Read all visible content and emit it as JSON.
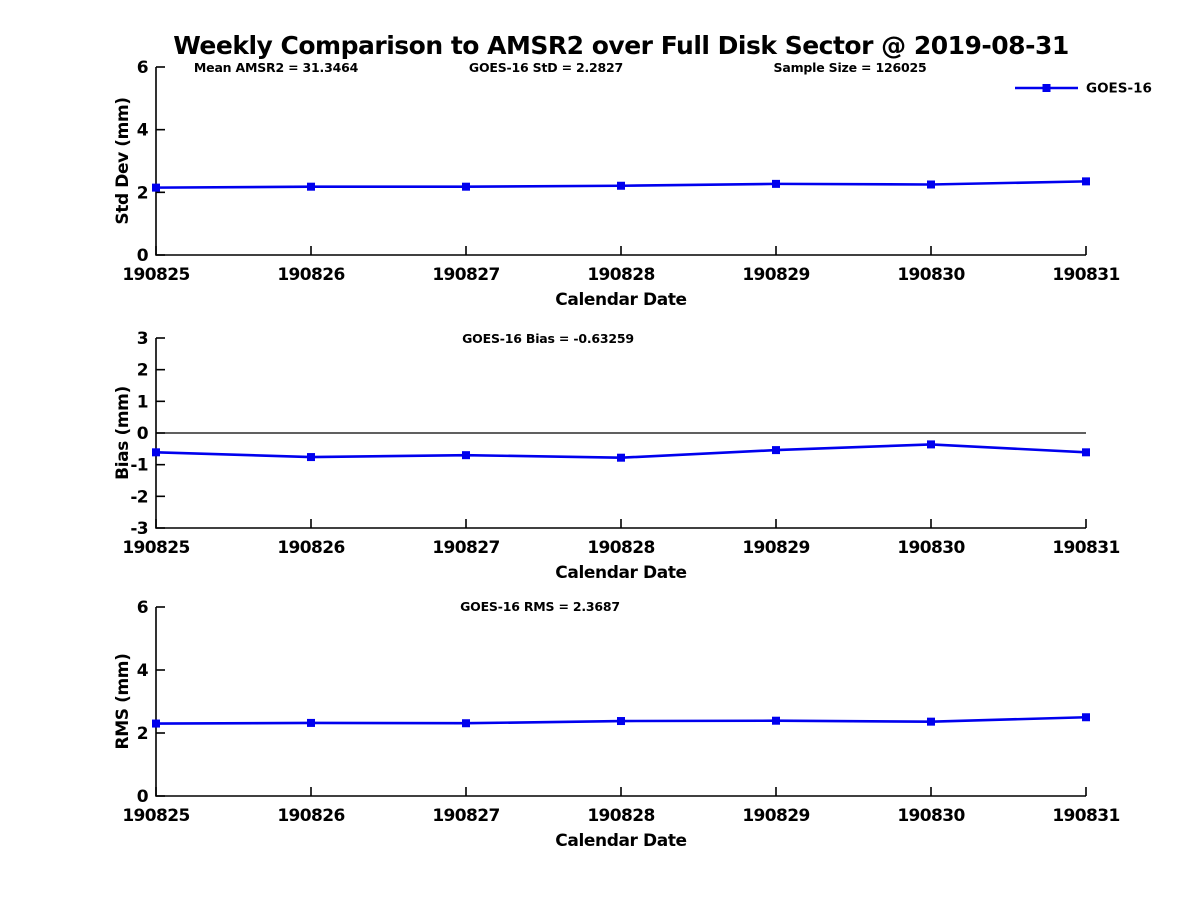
{
  "figure": {
    "title": "Weekly Comparison to AMSR2 over Full Disk Sector @ 2019-08-31",
    "background_color": "#ffffff",
    "axis_color": "#000000",
    "line_color": "#0000ee"
  },
  "chart_data": [
    {
      "type": "line",
      "name": "std-dev",
      "categories": [
        "190825",
        "190826",
        "190827",
        "190828",
        "190829",
        "190830",
        "190831"
      ],
      "series": [
        {
          "name": "GOES-16",
          "color": "#0000ee",
          "marker": "square",
          "values": [
            2.15,
            2.18,
            2.18,
            2.21,
            2.27,
            2.25,
            2.35
          ]
        }
      ],
      "xlabel": "Calendar Date",
      "ylabel": "Std Dev (mm)",
      "ylim": [
        0,
        6
      ],
      "yticks": [
        0,
        2,
        4,
        6
      ],
      "grid": false,
      "zero_line": false,
      "annotations": [
        "Mean AMSR2 = 31.3464",
        "GOES-16 StD = 2.2827",
        "Sample Size = 126025"
      ],
      "legend": {
        "visible": true,
        "label": "GOES-16",
        "position": "top-right-outside"
      }
    },
    {
      "type": "line",
      "name": "bias",
      "categories": [
        "190825",
        "190826",
        "190827",
        "190828",
        "190829",
        "190830",
        "190831"
      ],
      "series": [
        {
          "name": "GOES-16",
          "color": "#0000ee",
          "marker": "square",
          "values": [
            -0.61,
            -0.76,
            -0.7,
            -0.78,
            -0.54,
            -0.36,
            -0.61
          ]
        }
      ],
      "xlabel": "Calendar Date",
      "ylabel": "Bias (mm)",
      "ylim": [
        -3,
        3
      ],
      "yticks": [
        -3,
        -2,
        -1,
        0,
        1,
        2,
        3
      ],
      "grid": false,
      "zero_line": true,
      "annotations": [
        "GOES-16 Bias  = -0.63259"
      ],
      "legend": {
        "visible": false,
        "label": "GOES-16"
      }
    },
    {
      "type": "line",
      "name": "rms",
      "categories": [
        "190825",
        "190826",
        "190827",
        "190828",
        "190829",
        "190830",
        "190831"
      ],
      "series": [
        {
          "name": "GOES-16",
          "color": "#0000ee",
          "marker": "square",
          "values": [
            2.3,
            2.32,
            2.31,
            2.38,
            2.39,
            2.36,
            2.5
          ]
        }
      ],
      "xlabel": "Calendar Date",
      "ylabel": "RMS (mm)",
      "ylim": [
        0,
        6
      ],
      "yticks": [
        0,
        2,
        4,
        6
      ],
      "grid": false,
      "zero_line": false,
      "annotations": [
        "GOES-16 RMS = 2.3687"
      ],
      "legend": {
        "visible": false,
        "label": "GOES-16"
      }
    }
  ]
}
